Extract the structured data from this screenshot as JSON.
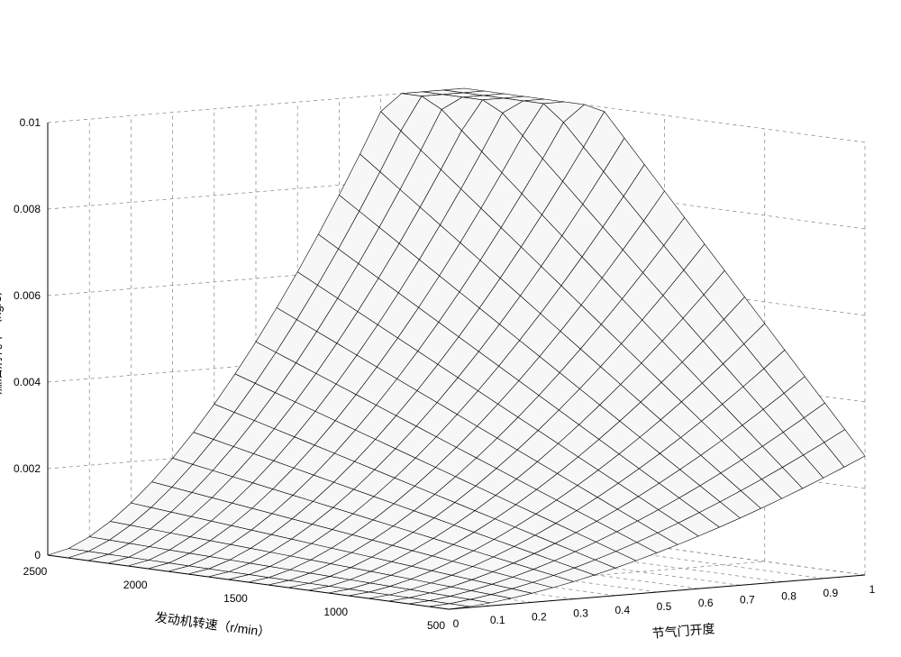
{
  "chart": {
    "type": "surface-3d",
    "background_color": "#ffffff",
    "x": {
      "label": "节气门开度",
      "min": 0,
      "max": 1,
      "ticks": [
        0,
        0.1,
        0.2,
        0.3,
        0.4,
        0.5,
        0.6,
        0.7,
        0.8,
        0.9,
        1
      ],
      "label_fontsize": 14,
      "tick_fontsize": 12
    },
    "y": {
      "label": "发动机转速（r/min）",
      "min": 500,
      "max": 2500,
      "ticks": [
        500,
        1000,
        1500,
        2000,
        2500
      ],
      "label_fontsize": 14,
      "tick_fontsize": 12
    },
    "z": {
      "label": "燃油消耗率（kg/s）",
      "min": 0,
      "max": 0.01,
      "ticks": [
        0,
        0.002,
        0.004,
        0.006,
        0.008,
        0.01
      ],
      "label_fontsize": 14,
      "tick_fontsize": 12
    },
    "mesh_line_color": "#000000",
    "mesh_line_width": 0.6,
    "mesh_fill_color": "#f7f7f7",
    "wall_grid_color": "#808080",
    "wall_grid_dash": "4,4",
    "wall_fill_color": "#ffffff",
    "axis_line_color": "#000000",
    "axis_line_width": 1.0,
    "x_samples": [
      0,
      0.05,
      0.1,
      0.15,
      0.2,
      0.25,
      0.3,
      0.35,
      0.4,
      0.45,
      0.5,
      0.55,
      0.6,
      0.65,
      0.7,
      0.75,
      0.8,
      0.85,
      0.9,
      0.95,
      1.0
    ],
    "y_samples": [
      500,
      600,
      700,
      800,
      900,
      1000,
      1100,
      1200,
      1300,
      1400,
      1500,
      1600,
      1700,
      1800,
      1900,
      2000,
      2100,
      2200,
      2300,
      2400,
      2500
    ],
    "surface_model": {
      "comment": "z ≈ clamp(zmax, k * rpm * throttle^p)  — fuel consumption rate rises with both rpm and throttle, saturating at high values",
      "k": 5.5e-06,
      "p": 1.6,
      "zmax": 0.01
    },
    "view": {
      "comment": "MATLAB-default-like perspective; screen-space projection parameters",
      "origin_screen": [
        498,
        676
      ],
      "x_axis_screen_vec": [
        462,
        -38
      ],
      "y_axis_screen_vec": [
        -445,
        -60
      ],
      "z_axis_screen_vec": [
        0,
        -480
      ]
    }
  }
}
